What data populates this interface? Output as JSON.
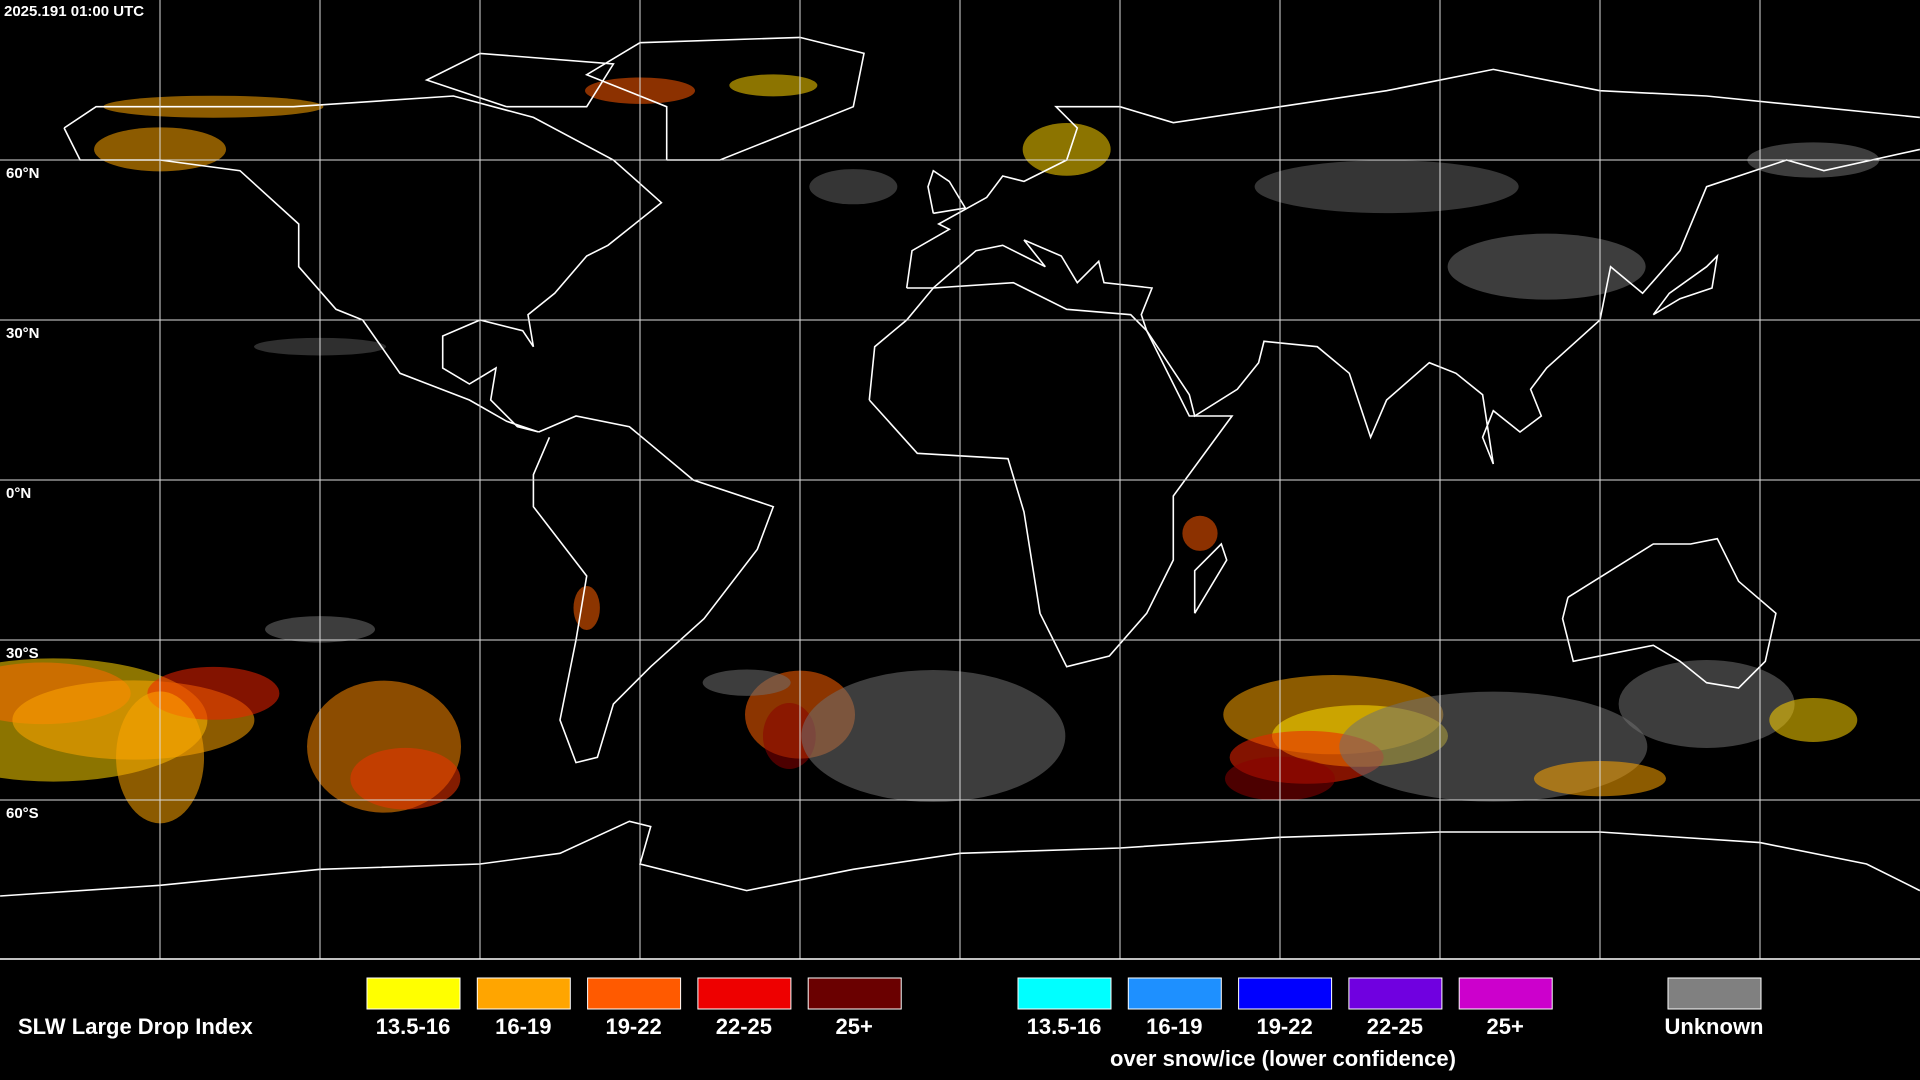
{
  "header": {
    "timestamp": "2025.191 01:00 UTC"
  },
  "map": {
    "lat_labels": [
      "60°N",
      "30°N",
      "0°N",
      "30°S",
      "60°S"
    ]
  },
  "legend": {
    "title": "SLW Large Drop Index",
    "liquid": [
      {
        "label": "13.5-16",
        "color": "#ffff00"
      },
      {
        "label": "16-19",
        "color": "#ffa500"
      },
      {
        "label": "19-22",
        "color": "#ff5a00"
      },
      {
        "label": "22-25",
        "color": "#ee0000"
      },
      {
        "label": "25+",
        "color": "#6a0000"
      }
    ],
    "snow_ice": [
      {
        "label": "13.5-16",
        "color": "#00ffff"
      },
      {
        "label": "16-19",
        "color": "#1e90ff"
      },
      {
        "label": "19-22",
        "color": "#0000ff"
      },
      {
        "label": "22-25",
        "color": "#7000e0"
      },
      {
        "label": "25+",
        "color": "#cc00cc"
      }
    ],
    "snow_ice_note": "over snow/ice (lower confidence)",
    "unknown": {
      "label": "Unknown",
      "color": "#808080"
    }
  }
}
